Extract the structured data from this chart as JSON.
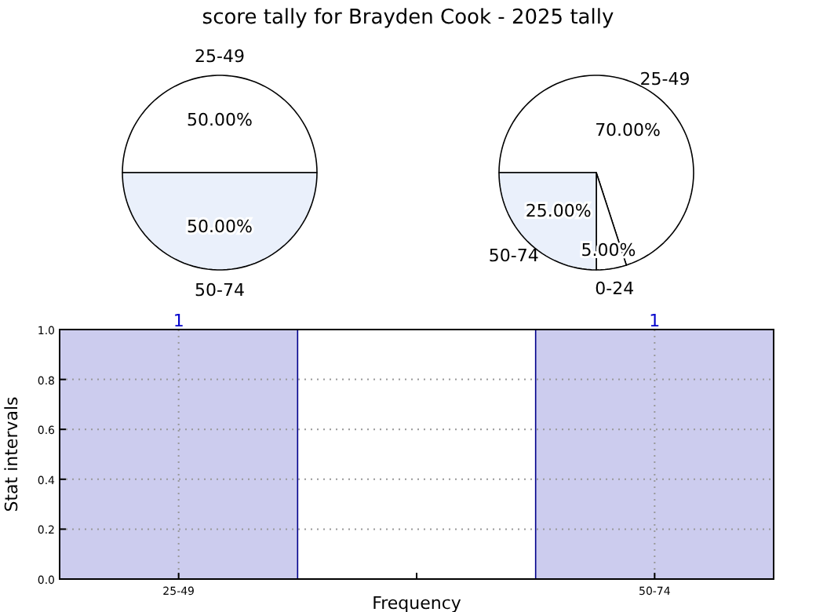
{
  "chart_data": [
    {
      "type": "pie",
      "title": "score tally for Brayden Cook - 2025 tally",
      "categories": [
        "25-49",
        "50-74"
      ],
      "values": [
        50,
        50
      ],
      "colors": [
        "#ffffff",
        "#eaf0fb"
      ],
      "value_labels": [
        "50.00%",
        "50.00%"
      ]
    },
    {
      "type": "pie",
      "categories": [
        "25-49",
        "0-24",
        "50-74"
      ],
      "values": [
        70,
        5,
        25
      ],
      "colors": [
        "#ffffff",
        "#ffffff",
        "#eaf0fb"
      ],
      "value_labels": [
        "70.00%",
        "5.00%",
        "25.00%"
      ]
    },
    {
      "type": "bar",
      "categories": [
        "25-49",
        null,
        "50-74"
      ],
      "values": [
        1,
        null,
        1
      ],
      "color": "#ccccee",
      "xlabel": "Frequency",
      "ylabel": "Stat intervals",
      "ylim": [
        0,
        1
      ],
      "yticks": [
        {
          "value": 0,
          "label": "0.0"
        },
        {
          "value": 0.2,
          "label": "0.2"
        },
        {
          "value": 0.4,
          "label": "0.4"
        },
        {
          "value": 0.6,
          "label": "0.6"
        },
        {
          "value": 0.8,
          "label": "0.8"
        },
        {
          "value": 1,
          "label": "1.0"
        }
      ],
      "grid": true,
      "data_labels": true
    }
  ]
}
